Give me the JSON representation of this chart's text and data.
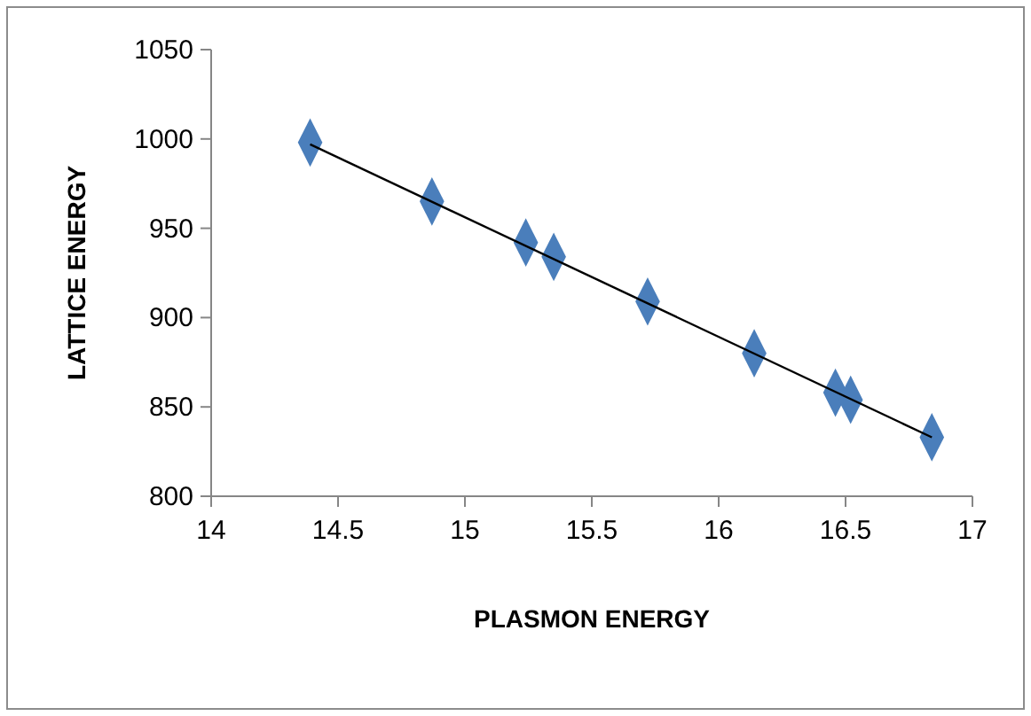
{
  "chart_data": {
    "type": "scatter",
    "xlabel": "PLASMON ENERGY",
    "ylabel": "LATTICE ENERGY",
    "x": [
      14.39,
      14.87,
      15.24,
      15.35,
      15.72,
      16.14,
      16.46,
      16.52,
      16.84
    ],
    "series": [
      {
        "color": "#4a7ebb",
        "marker": "diamond",
        "values": [
          998,
          965,
          942,
          934,
          909,
          880,
          858,
          854,
          833
        ]
      },
      {
        "type": "line",
        "color": "#000000",
        "x": [
          14.39,
          16.84
        ],
        "values": [
          997,
          833
        ]
      }
    ],
    "xlim": [
      14,
      17
    ],
    "ylim": [
      800,
      1050
    ],
    "xticks": [
      14,
      14.5,
      15,
      15.5,
      16,
      16.5,
      17
    ],
    "yticks": [
      800,
      850,
      900,
      950,
      1000,
      1050
    ],
    "grid": false
  }
}
